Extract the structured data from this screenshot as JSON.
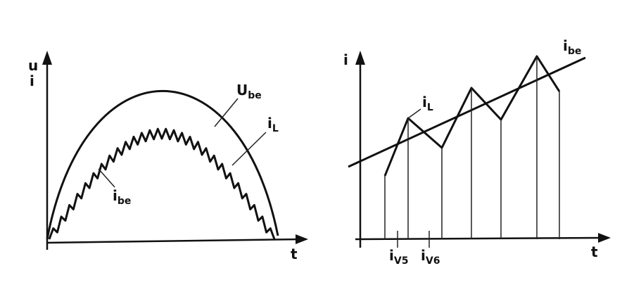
{
  "left_panel": {
    "y_axis_label_top": "u",
    "y_axis_label_bottom": "i",
    "x_axis_label": "t",
    "curve_labels": [
      {
        "symbol": "U",
        "subscript": "be"
      },
      {
        "symbol": "i",
        "subscript": "L"
      },
      {
        "symbol": "i",
        "subscript": "be"
      }
    ]
  },
  "right_panel": {
    "y_axis_label": "i",
    "x_axis_label": "t",
    "curve_labels": [
      {
        "symbol": "i",
        "subscript": "be"
      },
      {
        "symbol": "i",
        "subscript": "L"
      }
    ],
    "axis_marks": [
      {
        "symbol": "i",
        "subscript": "V5"
      },
      {
        "symbol": "i",
        "subscript": "V6"
      }
    ]
  }
}
